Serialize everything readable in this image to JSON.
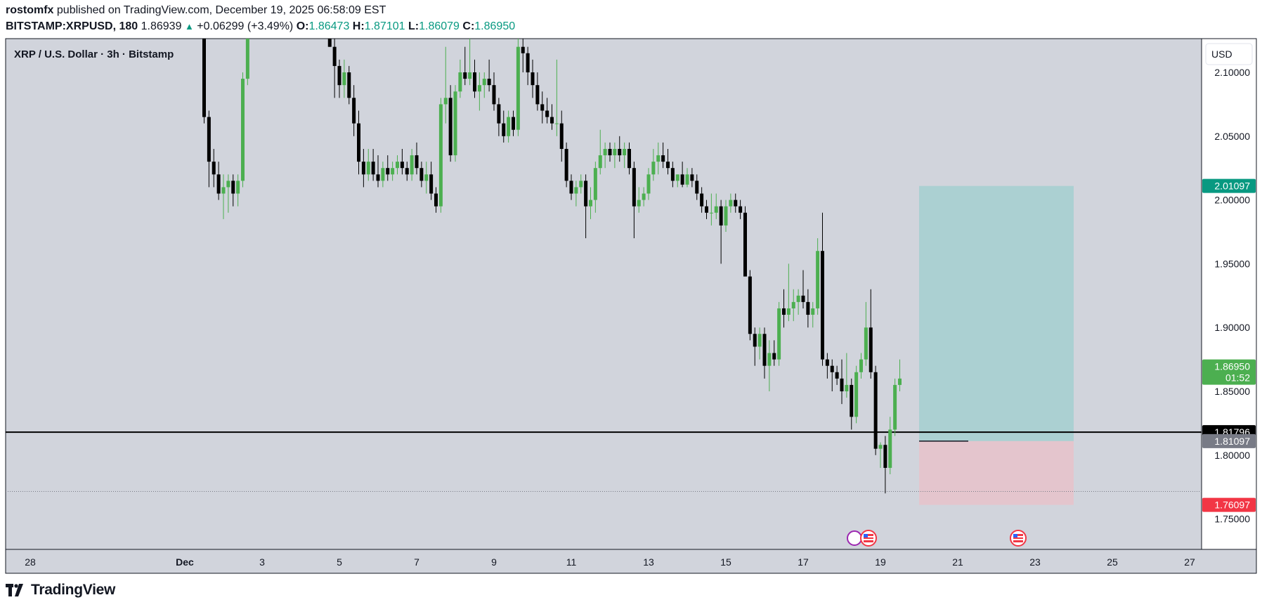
{
  "header": {
    "author": "rostomfx",
    "published_text": "published on TradingView.com, December 19, 2025 06:58:09 EST",
    "symbol": "BITSTAMP:XRPUSD, 180",
    "last": "1.86939",
    "change": "+0.06299 (+3.49%)",
    "open_label": "O:",
    "open": "1.86473",
    "high_label": "H:",
    "high": "1.87101",
    "low_label": "L:",
    "low": "1.86079",
    "close_label": "C:",
    "close": "1.86950"
  },
  "footer": {
    "brand": "TradingView"
  },
  "chart_data": {
    "type": "candlestick",
    "title": "XRP / U.S. Dollar · 3h · Bitstamp",
    "currency": "USD",
    "ylim": [
      1.72,
      2.13
    ],
    "y_ticks": [
      "2.10000",
      "2.05000",
      "2.00000",
      "1.95000",
      "1.90000",
      "1.85000",
      "1.80000",
      "1.75000"
    ],
    "x_ticks": [
      "28",
      "Dec",
      "3",
      "5",
      "7",
      "9",
      "11",
      "13",
      "15",
      "17",
      "19",
      "21",
      "23",
      "25",
      "27"
    ],
    "x_tick_days": [
      -3,
      1,
      3,
      5,
      7,
      9,
      11,
      13,
      15,
      17,
      19,
      21,
      23,
      25,
      27
    ],
    "colors": {
      "up": "#4caf50",
      "down": "#000000",
      "profit_zone": "#a5cfd0",
      "loss_zone": "#e6c3cb",
      "background": "#d1d4dc"
    },
    "candles_approx": [
      [
        1.5,
        2.18,
        2.2,
        2.06,
        2.065
      ],
      [
        1.625,
        2.065,
        2.07,
        2.01,
        2.03
      ],
      [
        1.75,
        2.03,
        2.04,
        2.01,
        2.02
      ],
      [
        1.875,
        2.02,
        2.03,
        2.0,
        2.005
      ],
      [
        2.0,
        2.005,
        2.02,
        1.985,
        2.01
      ],
      [
        2.125,
        2.01,
        2.02,
        1.99,
        2.015
      ],
      [
        2.25,
        2.015,
        2.02,
        1.995,
        2.005
      ],
      [
        2.375,
        2.005,
        2.02,
        1.995,
        2.015
      ],
      [
        2.5,
        2.015,
        2.1,
        2.01,
        2.095
      ],
      [
        2.625,
        2.095,
        2.16,
        2.09,
        2.15
      ],
      [
        4.75,
        2.15,
        2.15,
        2.12,
        2.12
      ],
      [
        4.875,
        2.12,
        2.13,
        2.08,
        2.105
      ],
      [
        5.0,
        2.105,
        2.11,
        2.08,
        2.09
      ],
      [
        5.125,
        2.09,
        2.11,
        2.08,
        2.1
      ],
      [
        5.25,
        2.1,
        2.105,
        2.075,
        2.08
      ],
      [
        5.375,
        2.08,
        2.09,
        2.05,
        2.06
      ],
      [
        5.5,
        2.06,
        2.07,
        2.02,
        2.03
      ],
      [
        5.625,
        2.03,
        2.04,
        2.01,
        2.02
      ],
      [
        5.75,
        2.02,
        2.04,
        2.015,
        2.03
      ],
      [
        5.875,
        2.03,
        2.04,
        2.015,
        2.02
      ],
      [
        6.0,
        2.02,
        2.035,
        2.01,
        2.015
      ],
      [
        6.125,
        2.015,
        2.03,
        2.01,
        2.025
      ],
      [
        6.25,
        2.025,
        2.035,
        2.015,
        2.02
      ],
      [
        6.375,
        2.02,
        2.03,
        2.015,
        2.025
      ],
      [
        6.5,
        2.025,
        2.035,
        2.02,
        2.03
      ],
      [
        6.625,
        2.03,
        2.04,
        2.02,
        2.025
      ],
      [
        6.75,
        2.025,
        2.03,
        2.015,
        2.02
      ],
      [
        6.875,
        2.02,
        2.04,
        2.015,
        2.035
      ],
      [
        7.0,
        2.035,
        2.045,
        2.02,
        2.025
      ],
      [
        7.125,
        2.025,
        2.03,
        2.01,
        2.015
      ],
      [
        7.25,
        2.015,
        2.03,
        2.005,
        2.02
      ],
      [
        7.375,
        2.02,
        2.03,
        2.0,
        2.005
      ],
      [
        7.5,
        2.005,
        2.01,
        1.99,
        1.995
      ],
      [
        7.625,
        1.995,
        2.08,
        1.99,
        2.075
      ],
      [
        7.75,
        2.075,
        2.12,
        2.06,
        2.08
      ],
      [
        7.875,
        2.08,
        2.09,
        2.03,
        2.035
      ],
      [
        8.0,
        2.035,
        2.09,
        2.03,
        2.085
      ],
      [
        8.125,
        2.085,
        2.11,
        2.08,
        2.1
      ],
      [
        8.25,
        2.1,
        2.12,
        2.09,
        2.095
      ],
      [
        8.375,
        2.095,
        2.13,
        2.09,
        2.1
      ],
      [
        8.5,
        2.1,
        2.11,
        2.08,
        2.085
      ],
      [
        8.625,
        2.085,
        2.1,
        2.07,
        2.09
      ],
      [
        8.75,
        2.09,
        2.1,
        2.08,
        2.095
      ],
      [
        8.875,
        2.095,
        2.11,
        2.085,
        2.09
      ],
      [
        9.0,
        2.09,
        2.1,
        2.07,
        2.075
      ],
      [
        9.125,
        2.075,
        2.08,
        2.05,
        2.06
      ],
      [
        9.25,
        2.06,
        2.07,
        2.045,
        2.05
      ],
      [
        9.375,
        2.05,
        2.07,
        2.045,
        2.065
      ],
      [
        9.5,
        2.065,
        2.07,
        2.05,
        2.055
      ],
      [
        9.625,
        2.055,
        2.13,
        2.05,
        2.12
      ],
      [
        9.75,
        2.12,
        2.135,
        2.1,
        2.115
      ],
      [
        9.875,
        2.115,
        2.12,
        2.09,
        2.1
      ],
      [
        10.0,
        2.1,
        2.11,
        2.08,
        2.09
      ],
      [
        10.125,
        2.09,
        2.1,
        2.07,
        2.075
      ],
      [
        10.25,
        2.075,
        2.085,
        2.06,
        2.07
      ],
      [
        10.375,
        2.07,
        2.08,
        2.06,
        2.065
      ],
      [
        10.5,
        2.065,
        2.075,
        2.055,
        2.06
      ],
      [
        10.625,
        2.06,
        2.11,
        2.05,
        2.06
      ],
      [
        10.75,
        2.06,
        2.07,
        2.03,
        2.04
      ],
      [
        10.875,
        2.04,
        2.045,
        2.01,
        2.015
      ],
      [
        11.0,
        2.015,
        2.02,
        2.0,
        2.005
      ],
      [
        11.125,
        2.005,
        2.015,
        1.995,
        2.01
      ],
      [
        11.25,
        2.01,
        2.02,
        2.005,
        2.015
      ],
      [
        11.375,
        2.015,
        2.02,
        1.97,
        1.995
      ],
      [
        11.5,
        1.995,
        2.01,
        1.985,
        2.0
      ],
      [
        11.625,
        2.0,
        2.03,
        1.99,
        2.025
      ],
      [
        11.75,
        2.025,
        2.055,
        2.02,
        2.035
      ],
      [
        11.875,
        2.035,
        2.045,
        2.025,
        2.04
      ],
      [
        12.0,
        2.04,
        2.045,
        2.03,
        2.035
      ],
      [
        12.125,
        2.035,
        2.045,
        2.025,
        2.04
      ],
      [
        12.25,
        2.04,
        2.05,
        2.03,
        2.035
      ],
      [
        12.375,
        2.035,
        2.045,
        2.025,
        2.04
      ],
      [
        12.5,
        2.04,
        2.045,
        2.02,
        2.025
      ],
      [
        12.625,
        2.025,
        2.03,
        1.97,
        1.995
      ],
      [
        12.75,
        1.995,
        2.01,
        1.99,
        2.0
      ],
      [
        12.875,
        2.0,
        2.01,
        1.995,
        2.005
      ],
      [
        13.0,
        2.005,
        2.025,
        2.0,
        2.02
      ],
      [
        13.125,
        2.02,
        2.04,
        2.015,
        2.03
      ],
      [
        13.25,
        2.03,
        2.045,
        2.02,
        2.035
      ],
      [
        13.375,
        2.035,
        2.045,
        2.025,
        2.03
      ],
      [
        13.5,
        2.03,
        2.04,
        2.02,
        2.025
      ],
      [
        13.625,
        2.025,
        2.03,
        2.01,
        2.015
      ],
      [
        13.75,
        2.015,
        2.02,
        2.01,
        2.02
      ],
      [
        13.875,
        2.02,
        2.03,
        2.01,
        2.012
      ],
      [
        14.0,
        2.012,
        2.025,
        2.01,
        2.02
      ],
      [
        14.125,
        2.02,
        2.025,
        2.01,
        2.015
      ],
      [
        14.25,
        2.015,
        2.02,
        2.0,
        2.005
      ],
      [
        14.375,
        2.005,
        2.01,
        1.99,
        1.995
      ],
      [
        14.5,
        1.995,
        2.0,
        1.985,
        1.99
      ],
      [
        14.625,
        1.99,
        2.005,
        1.98,
        1.99
      ],
      [
        14.75,
        1.99,
        2.005,
        1.985,
        1.995
      ],
      [
        14.875,
        1.995,
        2.0,
        1.95,
        1.98
      ],
      [
        15.0,
        1.98,
        2.0,
        1.975,
        1.995
      ],
      [
        15.125,
        1.995,
        2.005,
        1.99,
        2.0
      ],
      [
        15.25,
        2.0,
        2.005,
        1.99,
        1.995
      ],
      [
        15.375,
        1.995,
        2.0,
        1.985,
        1.99
      ],
      [
        15.5,
        1.99,
        1.995,
        1.94,
        1.94
      ],
      [
        15.625,
        1.94,
        1.945,
        1.89,
        1.895
      ],
      [
        15.75,
        1.895,
        1.9,
        1.87,
        1.885
      ],
      [
        15.875,
        1.885,
        1.9,
        1.875,
        1.895
      ],
      [
        16.0,
        1.895,
        1.9,
        1.86,
        1.87
      ],
      [
        16.125,
        1.87,
        1.89,
        1.85,
        1.88
      ],
      [
        16.25,
        1.88,
        1.89,
        1.87,
        1.875
      ],
      [
        16.375,
        1.875,
        1.92,
        1.87,
        1.915
      ],
      [
        16.5,
        1.915,
        1.93,
        1.9,
        1.91
      ],
      [
        16.625,
        1.91,
        1.95,
        1.905,
        1.915
      ],
      [
        16.75,
        1.915,
        1.93,
        1.905,
        1.92
      ],
      [
        16.875,
        1.92,
        1.93,
        1.91,
        1.925
      ],
      [
        17.0,
        1.925,
        1.945,
        1.915,
        1.92
      ],
      [
        17.125,
        1.92,
        1.93,
        1.9,
        1.91
      ],
      [
        17.25,
        1.91,
        1.92,
        1.9,
        1.915
      ],
      [
        17.375,
        1.915,
        1.97,
        1.91,
        1.96
      ],
      [
        17.5,
        1.96,
        1.99,
        1.87,
        1.875
      ],
      [
        17.625,
        1.875,
        1.88,
        1.86,
        1.87
      ],
      [
        17.75,
        1.87,
        1.875,
        1.85,
        1.865
      ],
      [
        17.875,
        1.865,
        1.87,
        1.855,
        1.86
      ],
      [
        18.0,
        1.86,
        1.875,
        1.84,
        1.85
      ],
      [
        18.125,
        1.85,
        1.88,
        1.845,
        1.855
      ],
      [
        18.25,
        1.855,
        1.86,
        1.82,
        1.83
      ],
      [
        18.375,
        1.83,
        1.87,
        1.825,
        1.865
      ],
      [
        18.5,
        1.865,
        1.88,
        1.86,
        1.875
      ],
      [
        18.625,
        1.875,
        1.92,
        1.87,
        1.9
      ],
      [
        18.75,
        1.9,
        1.93,
        1.86,
        1.865
      ],
      [
        18.875,
        1.865,
        1.87,
        1.8,
        1.805
      ],
      [
        19.0,
        1.805,
        1.81,
        1.79,
        1.808
      ],
      [
        19.125,
        1.808,
        1.815,
        1.77,
        1.79
      ],
      [
        19.25,
        1.79,
        1.83,
        1.785,
        1.82
      ],
      [
        19.375,
        1.82,
        1.86,
        1.815,
        1.855
      ],
      [
        19.5,
        1.855,
        1.875,
        1.85,
        1.86
      ]
    ],
    "position": {
      "entry": 1.81097,
      "target": 2.01097,
      "stop": 1.76097,
      "start_day": 20.0,
      "end_day": 24.0
    },
    "horizontal_line": 1.81796,
    "dotted_line": 1.7715,
    "price_labels": {
      "target": "2.01097",
      "current": "1.86950",
      "countdown": "01:52",
      "line": "1.81796",
      "entry": "1.81097",
      "stop": "1.76097"
    },
    "currency_button": "USD"
  }
}
